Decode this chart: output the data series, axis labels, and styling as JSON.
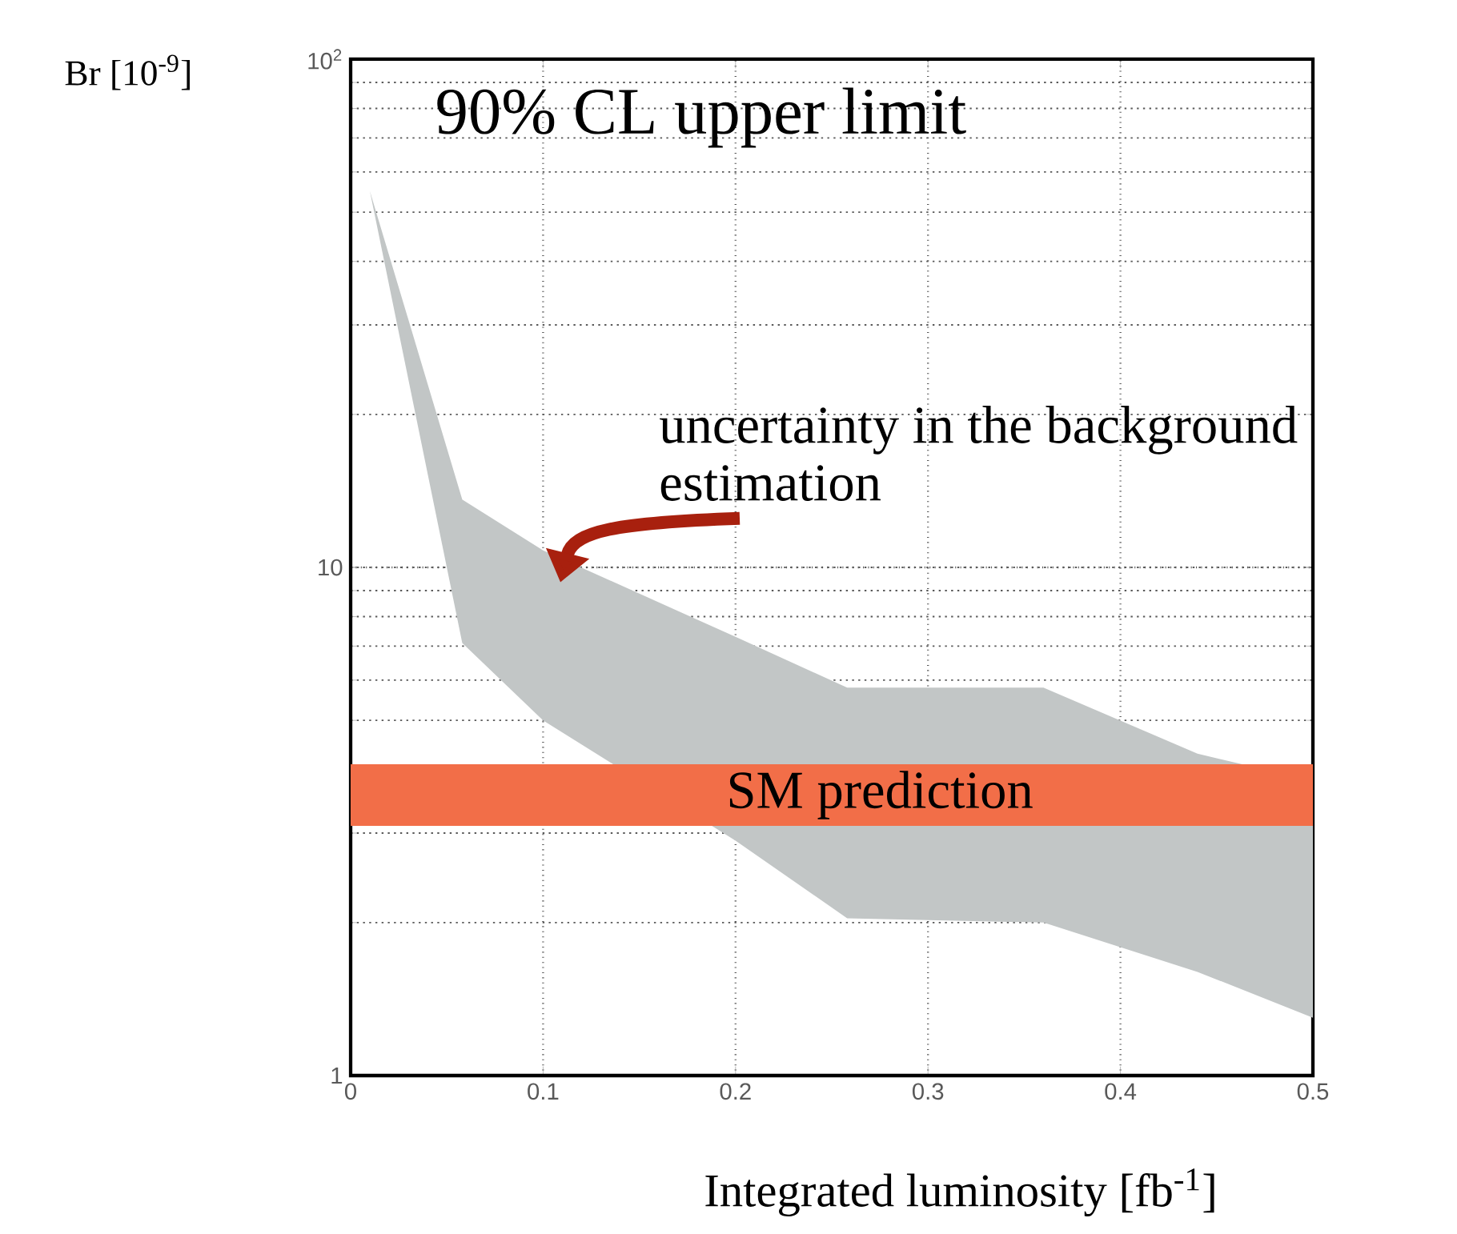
{
  "chart_data": {
    "type": "area",
    "title": "90% CL upper limit",
    "xlabel": "Integrated luminosity [fb$^{-1}$]",
    "ylabel": "Br [10$^{-9}$]",
    "xlim": [
      0,
      0.5
    ],
    "ylim": [
      1,
      100
    ],
    "log": "y",
    "grid": true,
    "xticks": [
      0,
      0.1,
      0.2,
      0.3,
      0.4,
      0.5
    ],
    "yticks": [
      1,
      10,
      {
        "value": 100,
        "label": "10$^{2}$"
      }
    ],
    "series": [
      {
        "color": "#c2c6c6",
        "x": [
          0.01,
          0.058,
          0.1,
          0.2,
          0.258,
          0.36,
          0.44,
          0.5
        ],
        "values": [
          null,
          null,
          null,
          null,
          null,
          null,
          null,
          null
        ],
        "lower": [
          55,
          7.1,
          5.0,
          2.9,
          2.04,
          2.0,
          1.6,
          1.3
        ],
        "upper": [
          55,
          13.6,
          10.8,
          7.3,
          5.8,
          5.8,
          4.3,
          3.8
        ]
      }
    ],
    "bands": [
      {
        "axis": "y",
        "from": 3.1,
        "to": 4.1,
        "label": "SM prediction",
        "color": "#f26e48"
      }
    ],
    "annotations": [
      "uncertainty in the background estimation"
    ]
  }
}
